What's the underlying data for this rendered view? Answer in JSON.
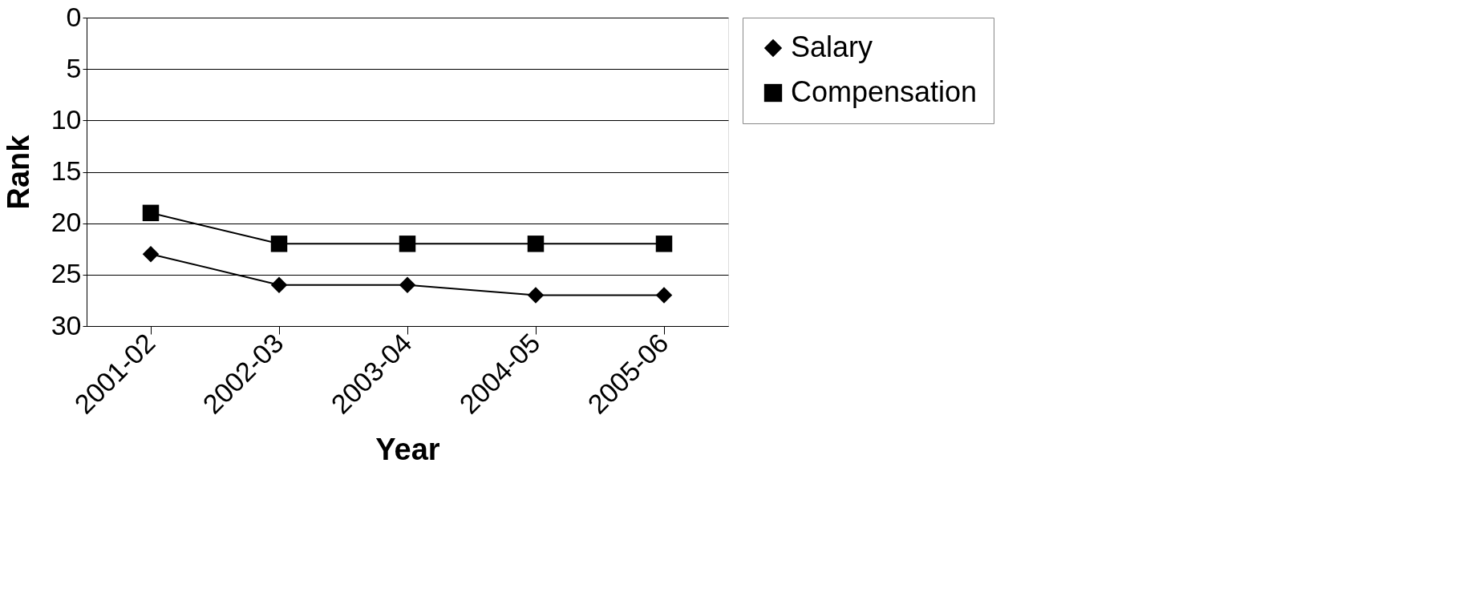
{
  "chart_data": {
    "type": "line",
    "xlabel": "Year",
    "ylabel": "Rank",
    "categories": [
      "2001-02",
      "2002-03",
      "2003-04",
      "2004-05",
      "2005-06"
    ],
    "series": [
      {
        "name": "Salary",
        "color": "#000000",
        "marker": "diamond",
        "values": [
          23,
          26,
          26,
          27,
          27
        ]
      },
      {
        "name": "Compensation",
        "color": "#000000",
        "marker": "square",
        "values": [
          19,
          22,
          22,
          22,
          22
        ]
      }
    ],
    "ylim": [
      30,
      0
    ],
    "yticks": [
      0,
      5,
      10,
      15,
      20,
      25,
      30
    ],
    "grid": "y",
    "legend": "top right",
    "line_style": "solid"
  }
}
